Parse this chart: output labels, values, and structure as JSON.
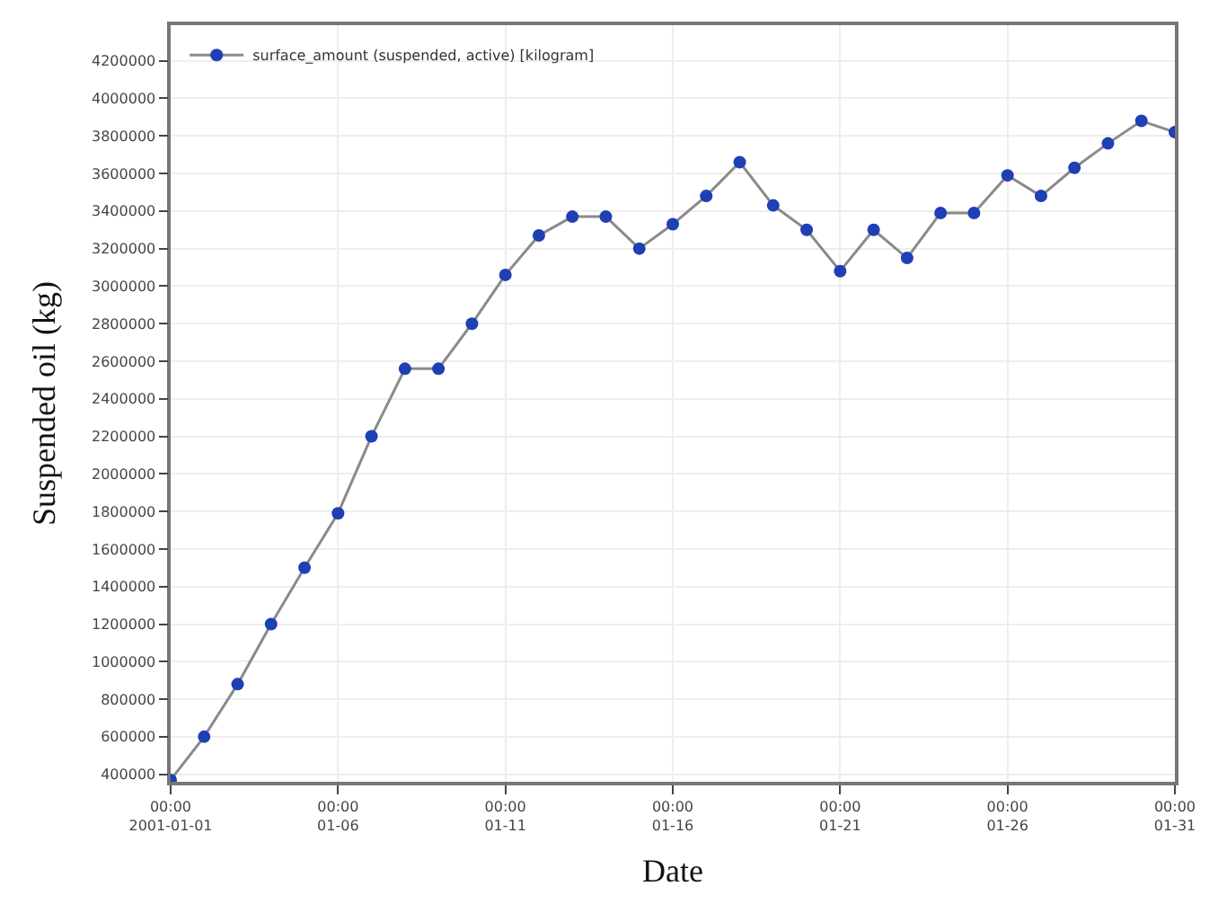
{
  "chart_data": {
    "type": "line",
    "xlabel": "Date",
    "ylabel": "Suspended oil (kg)",
    "x": [
      "2001-01-01",
      "2001-01-02",
      "2001-01-03",
      "2001-01-04",
      "2001-01-05",
      "2001-01-06",
      "2001-01-07",
      "2001-01-08",
      "2001-01-09",
      "2001-01-10",
      "2001-01-11",
      "2001-01-12",
      "2001-01-13",
      "2001-01-14",
      "2001-01-15",
      "2001-01-16",
      "2001-01-17",
      "2001-01-18",
      "2001-01-19",
      "2001-01-20",
      "2001-01-21",
      "2001-01-22",
      "2001-01-23",
      "2001-01-24",
      "2001-01-25",
      "2001-01-26",
      "2001-01-27",
      "2001-01-28",
      "2001-01-29",
      "2001-01-30",
      "2001-01-31"
    ],
    "series": [
      {
        "name": "surface_amount (suspended, active) [kilogram]",
        "color": "#1f3fb4",
        "values": [
          370000,
          600000,
          880000,
          1200000,
          1500000,
          1790000,
          2200000,
          2560000,
          2560000,
          2800000,
          3060000,
          3270000,
          3370000,
          3370000,
          3200000,
          3330000,
          3480000,
          3660000,
          3430000,
          3300000,
          3080000,
          3300000,
          3150000,
          3390000,
          3390000,
          3590000,
          3480000,
          3630000,
          3760000,
          3880000,
          3820000
        ]
      }
    ],
    "xlim": [
      "2001-01-01",
      "2001-01-31"
    ],
    "xticks": [
      {
        "value": "2001-01-01",
        "label": "00:00\n2001-01-01"
      },
      {
        "value": "2001-01-06",
        "label": "00:00\n01-06"
      },
      {
        "value": "2001-01-11",
        "label": "00:00\n01-11"
      },
      {
        "value": "2001-01-16",
        "label": "00:00\n01-16"
      },
      {
        "value": "2001-01-21",
        "label": "00:00\n01-21"
      },
      {
        "value": "2001-01-26",
        "label": "00:00\n01-26"
      },
      {
        "value": "2001-01-31",
        "label": "00:00\n01-31"
      }
    ],
    "ylim": [
      360000,
      4390000
    ],
    "yticks": [
      400000,
      600000,
      800000,
      1000000,
      1200000,
      1400000,
      1600000,
      1800000,
      2000000,
      2200000,
      2400000,
      2600000,
      2800000,
      3000000,
      3200000,
      3400000,
      3600000,
      3800000,
      4000000,
      4200000
    ],
    "grid": true,
    "legend": "top left",
    "marker": "circle",
    "line_style": "solid"
  }
}
